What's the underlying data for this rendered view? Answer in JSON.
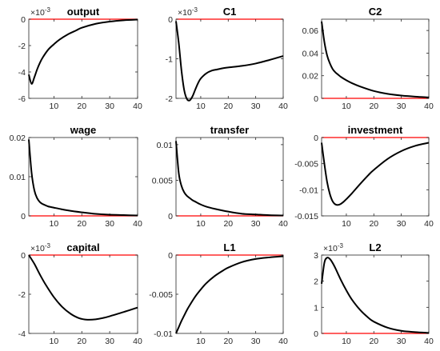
{
  "figure": {
    "background": "#ffffff",
    "line_color": "#000000",
    "zero_line_color": "#ff0000"
  },
  "chart_data": [
    {
      "type": "line",
      "title": "output",
      "scale_label": "×10",
      "scale_exp": "-3",
      "xlim": [
        1,
        40
      ],
      "ylim": [
        -6,
        0
      ],
      "xticks": [
        10,
        20,
        30,
        40
      ],
      "yticks": [
        -6,
        -4,
        -2,
        0
      ],
      "ytick_labels": [
        "-6",
        "-4",
        "-2",
        "0"
      ],
      "series": [
        {
          "x": [
            1,
            2,
            3,
            4,
            5,
            6,
            8,
            10,
            12,
            15,
            18,
            20,
            25,
            30,
            35,
            40
          ],
          "y": [
            -4.2,
            -4.9,
            -4.4,
            -3.8,
            -3.3,
            -2.9,
            -2.3,
            -1.9,
            -1.55,
            -1.15,
            -0.85,
            -0.65,
            -0.35,
            -0.18,
            -0.08,
            -0.03
          ]
        }
      ]
    },
    {
      "type": "line",
      "title": "C1",
      "scale_label": "×10",
      "scale_exp": "-3",
      "xlim": [
        1,
        40
      ],
      "ylim": [
        -2,
        0
      ],
      "xticks": [
        10,
        20,
        30,
        40
      ],
      "yticks": [
        -2,
        -1,
        0
      ],
      "ytick_labels": [
        "-2",
        "-1",
        "0"
      ],
      "series": [
        {
          "x": [
            1,
            2,
            3,
            4,
            5,
            6,
            7,
            8,
            9,
            10,
            12,
            14,
            16,
            18,
            20,
            25,
            30,
            35,
            40
          ],
          "y": [
            -0.05,
            -0.6,
            -1.3,
            -1.8,
            -2.02,
            -2.05,
            -1.95,
            -1.78,
            -1.62,
            -1.5,
            -1.37,
            -1.3,
            -1.27,
            -1.24,
            -1.22,
            -1.18,
            -1.12,
            -1.03,
            -0.93
          ]
        }
      ]
    },
    {
      "type": "line",
      "title": "C2",
      "xlim": [
        1,
        40
      ],
      "ylim": [
        0,
        0.07
      ],
      "xticks": [
        10,
        20,
        30,
        40
      ],
      "yticks": [
        0,
        0.02,
        0.04,
        0.06
      ],
      "ytick_labels": [
        "0",
        "0.02",
        "0.04",
        "0.06"
      ],
      "series": [
        {
          "x": [
            1,
            2,
            3,
            4,
            5,
            6,
            7,
            8,
            10,
            12,
            15,
            20,
            25,
            30,
            35,
            40
          ],
          "y": [
            0.068,
            0.05,
            0.038,
            0.031,
            0.026,
            0.023,
            0.021,
            0.019,
            0.016,
            0.0135,
            0.0105,
            0.0065,
            0.004,
            0.0025,
            0.0015,
            0.0008
          ]
        }
      ]
    },
    {
      "type": "line",
      "title": "wage",
      "xlim": [
        1,
        40
      ],
      "ylim": [
        0,
        0.02
      ],
      "xticks": [
        10,
        20,
        30,
        40
      ],
      "yticks": [
        0,
        0.01,
        0.02
      ],
      "ytick_labels": [
        "0",
        "0.01",
        "0.02"
      ],
      "series": [
        {
          "x": [
            1,
            2,
            3,
            4,
            5,
            6,
            7,
            8,
            10,
            12,
            15,
            20,
            25,
            30,
            35,
            40
          ],
          "y": [
            0.0195,
            0.011,
            0.0065,
            0.0045,
            0.0035,
            0.003,
            0.0027,
            0.0024,
            0.0021,
            0.0018,
            0.0014,
            0.0009,
            0.0005,
            0.0003,
            0.0002,
            0.0001
          ]
        }
      ]
    },
    {
      "type": "line",
      "title": "transfer",
      "xlim": [
        1,
        40
      ],
      "ylim": [
        0,
        0.011
      ],
      "xticks": [
        10,
        20,
        30,
        40
      ],
      "yticks": [
        0,
        0.005,
        0.01
      ],
      "ytick_labels": [
        "0",
        "0.005",
        "0.01"
      ],
      "series": [
        {
          "x": [
            1,
            2,
            3,
            4,
            5,
            6,
            7,
            8,
            10,
            12,
            15,
            20,
            25,
            30,
            35,
            40
          ],
          "y": [
            0.0105,
            0.006,
            0.0042,
            0.0033,
            0.0028,
            0.0025,
            0.0022,
            0.002,
            0.0016,
            0.0013,
            0.001,
            0.0006,
            0.0003,
            0.0002,
            0.0001,
            5e-05
          ]
        }
      ]
    },
    {
      "type": "line",
      "title": "investment",
      "xlim": [
        1,
        40
      ],
      "ylim": [
        -0.015,
        0
      ],
      "xticks": [
        10,
        20,
        30,
        40
      ],
      "yticks": [
        -0.015,
        -0.01,
        -0.005,
        0
      ],
      "ytick_labels": [
        "-0.015",
        "-0.01",
        "-0.005",
        "0"
      ],
      "series": [
        {
          "x": [
            1,
            2,
            3,
            4,
            5,
            6,
            7,
            8,
            9,
            10,
            12,
            15,
            18,
            20,
            25,
            30,
            35,
            40
          ],
          "y": [
            -0.001,
            -0.005,
            -0.0085,
            -0.0108,
            -0.0122,
            -0.0128,
            -0.0129,
            -0.0127,
            -0.0123,
            -0.0118,
            -0.0107,
            -0.0089,
            -0.0072,
            -0.0062,
            -0.0041,
            -0.0026,
            -0.0016,
            -0.001
          ]
        }
      ]
    },
    {
      "type": "line",
      "title": "capital",
      "scale_label": "×10",
      "scale_exp": "-3",
      "xlim": [
        1,
        40
      ],
      "ylim": [
        -4,
        0
      ],
      "xticks": [
        10,
        20,
        30,
        40
      ],
      "yticks": [
        -4,
        -2,
        0
      ],
      "ytick_labels": [
        "-4",
        "-2",
        "0"
      ],
      "series": [
        {
          "x": [
            1,
            3,
            5,
            7,
            10,
            13,
            16,
            19,
            22,
            25,
            28,
            31,
            34,
            37,
            40
          ],
          "y": [
            0,
            -0.45,
            -1.0,
            -1.5,
            -2.15,
            -2.65,
            -3.0,
            -3.22,
            -3.3,
            -3.28,
            -3.2,
            -3.08,
            -2.95,
            -2.82,
            -2.68
          ]
        }
      ]
    },
    {
      "type": "line",
      "title": "L1",
      "xlim": [
        1,
        40
      ],
      "ylim": [
        -0.01,
        0
      ],
      "xticks": [
        10,
        20,
        30,
        40
      ],
      "yticks": [
        -0.01,
        -0.005,
        0
      ],
      "ytick_labels": [
        "-0.01",
        "-0.005",
        "0"
      ],
      "series": [
        {
          "x": [
            1,
            2,
            3,
            4,
            5,
            6,
            8,
            10,
            12,
            15,
            18,
            20,
            25,
            30,
            35,
            40
          ],
          "y": [
            -0.01,
            -0.0092,
            -0.0084,
            -0.0077,
            -0.007,
            -0.0064,
            -0.0053,
            -0.0044,
            -0.0036,
            -0.0027,
            -0.002,
            -0.0016,
            -0.0009,
            -0.0005,
            -0.0003,
            -0.00015
          ]
        }
      ]
    },
    {
      "type": "line",
      "title": "L2",
      "scale_label": "×10",
      "scale_exp": "-3",
      "xlim": [
        1,
        40
      ],
      "ylim": [
        0,
        3
      ],
      "xticks": [
        10,
        20,
        30,
        40
      ],
      "yticks": [
        0,
        1,
        2,
        3
      ],
      "ytick_labels": [
        "0",
        "1",
        "2",
        "3"
      ],
      "series": [
        {
          "x": [
            1,
            2,
            3,
            4,
            5,
            6,
            8,
            10,
            12,
            15,
            18,
            20,
            25,
            30,
            35,
            40
          ],
          "y": [
            1.9,
            2.7,
            2.9,
            2.85,
            2.7,
            2.5,
            2.05,
            1.65,
            1.3,
            0.9,
            0.6,
            0.45,
            0.22,
            0.1,
            0.05,
            0.02
          ]
        }
      ]
    }
  ]
}
